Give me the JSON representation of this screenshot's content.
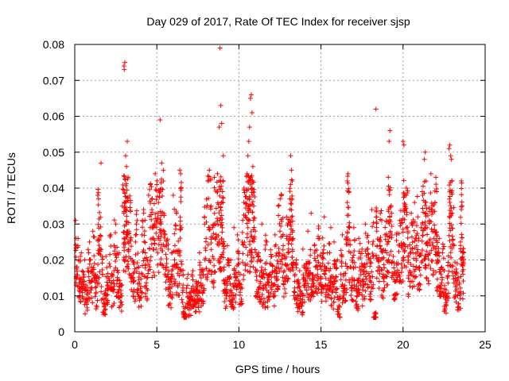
{
  "chart_data": {
    "type": "scatter",
    "title": "Day 029 of 2017, Rate Of TEC Index for receiver sjsp",
    "xlabel": "GPS time / hours",
    "ylabel": "ROTI / TECUs",
    "xlim": [
      0,
      25
    ],
    "ylim": [
      0,
      0.08
    ],
    "xticks": [
      "0",
      "5",
      "10",
      "15",
      "20",
      "25"
    ],
    "yticks": [
      "0",
      "0.01",
      "0.02",
      "0.03",
      "0.04",
      "0.05",
      "0.06",
      "0.07",
      "0.08"
    ],
    "grid": true,
    "marker": "plus",
    "color": "#ff0000",
    "series": [
      {
        "name": "ROTI",
        "points": [
          [
            0.05,
            0.031
          ],
          [
            0.1,
            0.018
          ],
          [
            0.2,
            0.026
          ],
          [
            0.3,
            0.015
          ],
          [
            0.4,
            0.022
          ],
          [
            0.5,
            0.012
          ],
          [
            0.6,
            0.02
          ],
          [
            0.7,
            0.009
          ],
          [
            0.8,
            0.017
          ],
          [
            0.9,
            0.025
          ],
          [
            1.0,
            0.014
          ],
          [
            1.1,
            0.028
          ],
          [
            1.2,
            0.019
          ],
          [
            1.3,
            0.011
          ],
          [
            1.4,
            0.038
          ],
          [
            1.45,
            0.037
          ],
          [
            1.5,
            0.023
          ],
          [
            1.6,
            0.047
          ],
          [
            1.7,
            0.016
          ],
          [
            1.8,
            0.008
          ],
          [
            1.9,
            0.021
          ],
          [
            2.0,
            0.013
          ],
          [
            2.1,
            0.019
          ],
          [
            2.2,
            0.027
          ],
          [
            2.3,
            0.012
          ],
          [
            2.4,
            0.024
          ],
          [
            2.5,
            0.03
          ],
          [
            2.6,
            0.017
          ],
          [
            2.7,
            0.022
          ],
          [
            2.8,
            0.01
          ],
          [
            2.9,
            0.035
          ],
          [
            3.0,
            0.074
          ],
          [
            3.02,
            0.073
          ],
          [
            3.05,
            0.075
          ],
          [
            3.1,
            0.049
          ],
          [
            3.15,
            0.046
          ],
          [
            3.2,
            0.053
          ],
          [
            3.25,
            0.043
          ],
          [
            3.3,
            0.028
          ],
          [
            3.4,
            0.036
          ],
          [
            3.5,
            0.02
          ],
          [
            3.6,
            0.014
          ],
          [
            3.7,
            0.025
          ],
          [
            3.8,
            0.031
          ],
          [
            3.9,
            0.018
          ],
          [
            4.0,
            0.012
          ],
          [
            4.1,
            0.027
          ],
          [
            4.2,
            0.033
          ],
          [
            4.3,
            0.022
          ],
          [
            4.4,
            0.015
          ],
          [
            4.5,
            0.038
          ],
          [
            4.6,
            0.029
          ],
          [
            4.7,
            0.034
          ],
          [
            4.8,
            0.026
          ],
          [
            4.9,
            0.044
          ],
          [
            5.0,
            0.041
          ],
          [
            5.1,
            0.036
          ],
          [
            5.2,
            0.059
          ],
          [
            5.25,
            0.03
          ],
          [
            5.3,
            0.047
          ],
          [
            5.4,
            0.045
          ],
          [
            5.5,
            0.027
          ],
          [
            5.6,
            0.019
          ],
          [
            5.7,
            0.023
          ],
          [
            5.8,
            0.012
          ],
          [
            5.9,
            0.016
          ],
          [
            6.0,
            0.038
          ],
          [
            6.1,
            0.024
          ],
          [
            6.2,
            0.033
          ],
          [
            6.3,
            0.018
          ],
          [
            6.4,
            0.045
          ],
          [
            6.45,
            0.044
          ],
          [
            6.5,
            0.029
          ],
          [
            6.6,
            0.013
          ],
          [
            6.7,
            0.005
          ],
          [
            6.8,
            0.011
          ],
          [
            6.9,
            0.016
          ],
          [
            7.0,
            0.008
          ],
          [
            7.1,
            0.012
          ],
          [
            7.2,
            0.017
          ],
          [
            7.3,
            0.009
          ],
          [
            7.4,
            0.014
          ],
          [
            7.5,
            0.01
          ],
          [
            7.6,
            0.022
          ],
          [
            7.7,
            0.015
          ],
          [
            7.8,
            0.013
          ],
          [
            7.9,
            0.032
          ],
          [
            8.0,
            0.026
          ],
          [
            8.1,
            0.042
          ],
          [
            8.2,
            0.045
          ],
          [
            8.3,
            0.035
          ],
          [
            8.4,
            0.021
          ],
          [
            8.5,
            0.043
          ],
          [
            8.6,
            0.03
          ],
          [
            8.7,
            0.044
          ],
          [
            8.8,
            0.057
          ],
          [
            8.85,
            0.079
          ],
          [
            8.9,
            0.063
          ],
          [
            8.95,
            0.058
          ],
          [
            9.0,
            0.039
          ],
          [
            9.05,
            0.049
          ],
          [
            9.1,
            0.018
          ],
          [
            9.2,
            0.011
          ],
          [
            9.3,
            0.024
          ],
          [
            9.4,
            0.015
          ],
          [
            9.5,
            0.02
          ],
          [
            9.6,
            0.009
          ],
          [
            9.7,
            0.029
          ],
          [
            9.8,
            0.013
          ],
          [
            9.9,
            0.027
          ],
          [
            10.0,
            0.019
          ],
          [
            10.1,
            0.012
          ],
          [
            10.2,
            0.025
          ],
          [
            10.3,
            0.036
          ],
          [
            10.4,
            0.032
          ],
          [
            10.5,
            0.044
          ],
          [
            10.55,
            0.049
          ],
          [
            10.6,
            0.053
          ],
          [
            10.65,
            0.057
          ],
          [
            10.7,
            0.065
          ],
          [
            10.75,
            0.066
          ],
          [
            10.8,
            0.061
          ],
          [
            10.85,
            0.046
          ],
          [
            10.9,
            0.035
          ],
          [
            11.0,
            0.028
          ],
          [
            11.1,
            0.017
          ],
          [
            11.2,
            0.022
          ],
          [
            11.3,
            0.014
          ],
          [
            11.4,
            0.03
          ],
          [
            11.5,
            0.012
          ],
          [
            11.6,
            0.019
          ],
          [
            11.7,
            0.025
          ],
          [
            11.8,
            0.011
          ],
          [
            11.9,
            0.016
          ],
          [
            12.0,
            0.021
          ],
          [
            12.1,
            0.013
          ],
          [
            12.2,
            0.027
          ],
          [
            12.3,
            0.018
          ],
          [
            12.4,
            0.035
          ],
          [
            12.5,
            0.028
          ],
          [
            12.6,
            0.038
          ],
          [
            12.7,
            0.024
          ],
          [
            12.8,
            0.015
          ],
          [
            12.9,
            0.032
          ],
          [
            13.0,
            0.022
          ],
          [
            13.1,
            0.037
          ],
          [
            13.15,
            0.049
          ],
          [
            13.2,
            0.045
          ],
          [
            13.25,
            0.042
          ],
          [
            13.3,
            0.026
          ],
          [
            13.4,
            0.014
          ],
          [
            13.5,
            0.02
          ],
          [
            13.6,
            0.01
          ],
          [
            13.7,
            0.017
          ],
          [
            13.8,
            0.008
          ],
          [
            13.9,
            0.023
          ],
          [
            14.0,
            0.013
          ],
          [
            14.1,
            0.019
          ],
          [
            14.2,
            0.028
          ],
          [
            14.3,
            0.016
          ],
          [
            14.4,
            0.033
          ],
          [
            14.5,
            0.011
          ],
          [
            14.6,
            0.024
          ],
          [
            14.7,
            0.018
          ],
          [
            14.8,
            0.021
          ],
          [
            14.9,
            0.026
          ],
          [
            15.0,
            0.015
          ],
          [
            15.1,
            0.019
          ],
          [
            15.2,
            0.032
          ],
          [
            15.3,
            0.013
          ],
          [
            15.4,
            0.022
          ],
          [
            15.5,
            0.017
          ],
          [
            15.6,
            0.029
          ],
          [
            15.7,
            0.011
          ],
          [
            15.8,
            0.025
          ],
          [
            15.9,
            0.014
          ],
          [
            16.0,
            0.02
          ],
          [
            16.1,
            0.007
          ],
          [
            16.2,
            0.016
          ],
          [
            16.3,
            0.027
          ],
          [
            16.4,
            0.012
          ],
          [
            16.5,
            0.019
          ],
          [
            16.6,
            0.036
          ],
          [
            16.65,
            0.044
          ],
          [
            16.7,
            0.039
          ],
          [
            16.8,
            0.022
          ],
          [
            16.9,
            0.015
          ],
          [
            17.0,
            0.029
          ],
          [
            17.1,
            0.018
          ],
          [
            17.2,
            0.01
          ],
          [
            17.3,
            0.026
          ],
          [
            17.4,
            0.017
          ],
          [
            17.5,
            0.023
          ],
          [
            17.6,
            0.013
          ],
          [
            17.7,
            0.03
          ],
          [
            17.8,
            0.019
          ],
          [
            17.9,
            0.025
          ],
          [
            18.0,
            0.015
          ],
          [
            18.1,
            0.034
          ],
          [
            18.2,
            0.021
          ],
          [
            18.3,
            0.004
          ],
          [
            18.35,
            0.062
          ],
          [
            18.4,
            0.028
          ],
          [
            18.5,
            0.018
          ],
          [
            18.6,
            0.024
          ],
          [
            18.7,
            0.031
          ],
          [
            18.8,
            0.016
          ],
          [
            18.9,
            0.027
          ],
          [
            19.0,
            0.022
          ],
          [
            19.1,
            0.043
          ],
          [
            19.15,
            0.053
          ],
          [
            19.2,
            0.056
          ],
          [
            19.3,
            0.033
          ],
          [
            19.4,
            0.021
          ],
          [
            19.5,
            0.014
          ],
          [
            19.6,
            0.027
          ],
          [
            19.7,
            0.019
          ],
          [
            19.8,
            0.031
          ],
          [
            19.9,
            0.024
          ],
          [
            20.0,
            0.053
          ],
          [
            20.05,
            0.052
          ],
          [
            20.1,
            0.035
          ],
          [
            20.2,
            0.04
          ],
          [
            20.3,
            0.028
          ],
          [
            20.4,
            0.017
          ],
          [
            20.5,
            0.033
          ],
          [
            20.6,
            0.022
          ],
          [
            20.7,
            0.036
          ],
          [
            20.8,
            0.026
          ],
          [
            20.9,
            0.032
          ],
          [
            21.0,
            0.018
          ],
          [
            21.1,
            0.029
          ],
          [
            21.2,
            0.038
          ],
          [
            21.3,
            0.048
          ],
          [
            21.35,
            0.05
          ],
          [
            21.4,
            0.042
          ],
          [
            21.5,
            0.024
          ],
          [
            21.6,
            0.031
          ],
          [
            21.7,
            0.044
          ],
          [
            21.8,
            0.035
          ],
          [
            21.9,
            0.028
          ],
          [
            22.0,
            0.043
          ],
          [
            22.05,
            0.039
          ],
          [
            22.1,
            0.02
          ],
          [
            22.2,
            0.026
          ],
          [
            22.3,
            0.013
          ],
          [
            22.4,
            0.022
          ],
          [
            22.5,
            0.017
          ],
          [
            22.6,
            0.009
          ],
          [
            22.7,
            0.015
          ],
          [
            22.8,
            0.051
          ],
          [
            22.85,
            0.052
          ],
          [
            22.9,
            0.049
          ],
          [
            22.95,
            0.048
          ],
          [
            23.0,
            0.033
          ],
          [
            23.1,
            0.024
          ],
          [
            23.2,
            0.014
          ],
          [
            23.3,
            0.019
          ],
          [
            23.4,
            0.011
          ],
          [
            23.5,
            0.025
          ],
          [
            23.55,
            0.042
          ],
          [
            23.6,
            0.035
          ],
          [
            23.65,
            0.016
          ],
          [
            23.7,
            0.022
          ]
        ]
      }
    ]
  }
}
